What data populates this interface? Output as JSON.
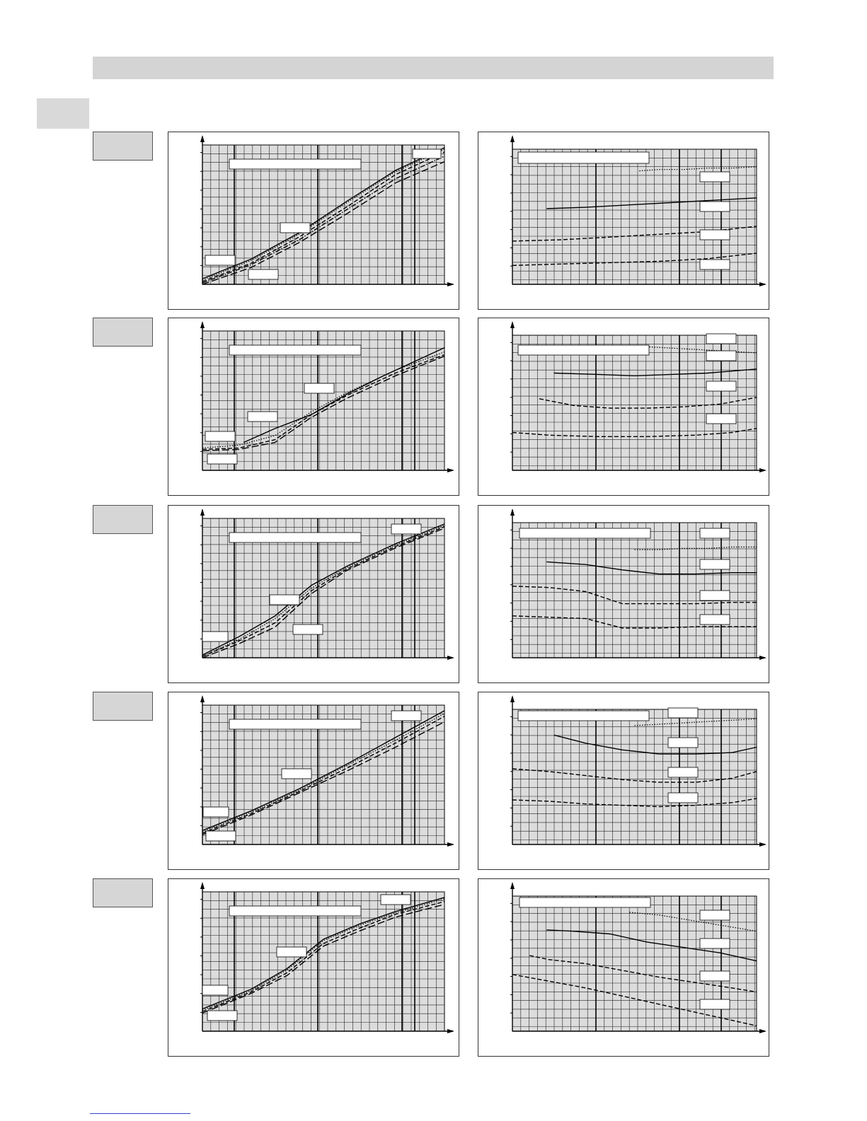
{
  "page": {
    "background": "#ffffff",
    "header_bar_color": "#d4d4d4",
    "tab_color": "#d9d9d9"
  },
  "chart_style": {
    "plot_bg": "#dcdcdc",
    "grid_minor": "#222222",
    "grid_major": "#000000"
  },
  "rows": [
    {
      "left": {
        "chart_data": {
          "type": "line",
          "grid": true,
          "xlim": [
            0,
            100
          ],
          "ylim": [
            0,
            100
          ],
          "series": [
            {
              "style": "solid",
              "x": [
                0,
                20,
                40,
                60,
                80,
                100
              ],
              "y": [
                4,
                18,
                37,
                60,
                82,
                98
              ]
            },
            {
              "style": "dotted",
              "x": [
                0,
                20,
                40,
                60,
                80,
                100
              ],
              "y": [
                3,
                17,
                36,
                59,
                81,
                97
              ]
            },
            {
              "style": "dashed",
              "x": [
                0,
                20,
                40,
                60,
                80,
                100
              ],
              "y": [
                2,
                15,
                34,
                56,
                79,
                95
              ]
            },
            {
              "style": "dashdot",
              "x": [
                0,
                20,
                40,
                60,
                80,
                100
              ],
              "y": [
                1,
                14,
                32,
                54,
                76,
                92
              ]
            },
            {
              "style": "longdash",
              "x": [
                0,
                20,
                40,
                60,
                80,
                100
              ],
              "y": [
                0,
                12,
                30,
                51,
                73,
                88
              ]
            }
          ]
        }
      },
      "right": {
        "chart_data": {
          "type": "line",
          "grid": true,
          "xlim": [
            0,
            100
          ],
          "ylim": [
            0,
            100
          ],
          "series": [
            {
              "style": "dotted",
              "x": [
                52,
                60,
                70,
                80,
                90,
                100
              ],
              "y": [
                84,
                85,
                85,
                86,
                86,
                87
              ]
            },
            {
              "style": "solid",
              "x": [
                14,
                30,
                50,
                70,
                100
              ],
              "y": [
                56,
                57,
                59,
                61,
                64
              ]
            },
            {
              "style": "dashed",
              "x": [
                0,
                20,
                40,
                60,
                80,
                100
              ],
              "y": [
                32,
                33,
                35,
                37,
                39,
                43
              ]
            },
            {
              "style": "dashed",
              "x": [
                0,
                20,
                40,
                60,
                80,
                100
              ],
              "y": [
                14,
                15,
                16,
                17,
                19,
                23
              ]
            }
          ]
        }
      }
    },
    {
      "left": {
        "chart_data": {
          "type": "line",
          "grid": true,
          "xlim": [
            0,
            100
          ],
          "ylim": [
            0,
            100
          ],
          "series": [
            {
              "style": "solid",
              "x": [
                17,
                30,
                45,
                60,
                75,
                90,
                100
              ],
              "y": [
                20,
                30,
                40,
                55,
                68,
                80,
                88
              ]
            },
            {
              "style": "dotted",
              "x": [
                0,
                15,
                30,
                45,
                60,
                80,
                100
              ],
              "y": [
                16,
                18,
                25,
                42,
                56,
                72,
                85
              ]
            },
            {
              "style": "dashed",
              "x": [
                0,
                15,
                30,
                45,
                60,
                80,
                100
              ],
              "y": [
                15,
                16,
                22,
                40,
                54,
                70,
                83
              ]
            },
            {
              "style": "longdash",
              "x": [
                0,
                15,
                30,
                45,
                60,
                80,
                100
              ],
              "y": [
                14,
                15,
                20,
                38,
                52,
                68,
                82
              ]
            }
          ]
        }
      },
      "right": {
        "chart_data": {
          "type": "line",
          "grid": true,
          "xlim": [
            0,
            100
          ],
          "ylim": [
            0,
            100
          ],
          "series": [
            {
              "style": "dotted",
              "x": [
                50,
                60,
                70,
                80,
                90,
                100
              ],
              "y": [
                92,
                91,
                90,
                89,
                88,
                87
              ]
            },
            {
              "style": "solid",
              "x": [
                17,
                35,
                50,
                65,
                80,
                100
              ],
              "y": [
                72,
                71,
                70,
                71,
                72,
                75
              ]
            },
            {
              "style": "dashed",
              "x": [
                11,
                25,
                40,
                55,
                70,
                85,
                100
              ],
              "y": [
                53,
                48,
                46,
                46,
                47,
                49,
                54
              ]
            },
            {
              "style": "dashed",
              "x": [
                0,
                15,
                35,
                55,
                75,
                90,
                100
              ],
              "y": [
                28,
                26,
                25,
                25,
                26,
                28,
                31
              ]
            }
          ]
        }
      }
    },
    {
      "left": {
        "chart_data": {
          "type": "line",
          "grid": true,
          "xlim": [
            0,
            100
          ],
          "ylim": [
            0,
            100
          ],
          "series": [
            {
              "style": "solid",
              "x": [
                0,
                15,
                30,
                45,
                60,
                80,
                100
              ],
              "y": [
                2,
                15,
                30,
                52,
                66,
                82,
                96
              ]
            },
            {
              "style": "dotted",
              "x": [
                0,
                15,
                30,
                45,
                60,
                80,
                100
              ],
              "y": [
                1,
                13,
                28,
                50,
                65,
                81,
                95
              ]
            },
            {
              "style": "dashed",
              "x": [
                0,
                15,
                30,
                45,
                60,
                80,
                100
              ],
              "y": [
                1,
                12,
                25,
                48,
                64,
                80,
                94
              ]
            },
            {
              "style": "longdash",
              "x": [
                0,
                15,
                30,
                45,
                60,
                80,
                100
              ],
              "y": [
                0,
                10,
                22,
                46,
                63,
                79,
                93
              ]
            }
          ]
        }
      },
      "right": {
        "chart_data": {
          "type": "line",
          "grid": true,
          "xlim": [
            0,
            100
          ],
          "ylim": [
            0,
            100
          ],
          "series": [
            {
              "style": "dotted",
              "x": [
                50,
                60,
                70,
                80,
                90,
                100
              ],
              "y": [
                80,
                80,
                81,
                81,
                82,
                82
              ]
            },
            {
              "style": "solid",
              "x": [
                14,
                30,
                45,
                60,
                75,
                90,
                100
              ],
              "y": [
                71,
                69,
                65,
                62,
                62,
                63,
                63
              ]
            },
            {
              "style": "dashed",
              "x": [
                0,
                15,
                30,
                45,
                60,
                75,
                90,
                100
              ],
              "y": [
                53,
                52,
                49,
                40,
                40,
                40,
                41,
                41
              ]
            },
            {
              "style": "dashed",
              "x": [
                0,
                15,
                30,
                45,
                60,
                75,
                90,
                100
              ],
              "y": [
                31,
                30,
                29,
                22,
                22,
                23,
                23,
                23
              ]
            }
          ]
        }
      }
    },
    {
      "left": {
        "chart_data": {
          "type": "line",
          "grid": true,
          "xlim": [
            0,
            100
          ],
          "ylim": [
            0,
            100
          ],
          "series": [
            {
              "style": "solid",
              "x": [
                0,
                20,
                40,
                60,
                80,
                100
              ],
              "y": [
                10,
                24,
                40,
                58,
                77,
                96
              ]
            },
            {
              "style": "dotted",
              "x": [
                0,
                20,
                40,
                60,
                80,
                100
              ],
              "y": [
                9,
                23,
                39,
                57,
                75,
                94
              ]
            },
            {
              "style": "dashed",
              "x": [
                0,
                20,
                40,
                60,
                80,
                100
              ],
              "y": [
                8,
                22,
                38,
                55,
                73,
                92
              ]
            },
            {
              "style": "longdash",
              "x": [
                0,
                20,
                40,
                60,
                80,
                100
              ],
              "y": [
                7,
                21,
                37,
                53,
                70,
                88
              ]
            }
          ]
        }
      },
      "right": {
        "chart_data": {
          "type": "line",
          "grid": true,
          "xlim": [
            0,
            100
          ],
          "ylim": [
            0,
            100
          ],
          "series": [
            {
              "style": "dotted",
              "x": [
                50,
                60,
                70,
                80,
                90,
                100
              ],
              "y": [
                88,
                89,
                90,
                91,
                92,
                93
              ]
            },
            {
              "style": "solid",
              "x": [
                17,
                30,
                45,
                60,
                75,
                90,
                100
              ],
              "y": [
                81,
                75,
                70,
                67,
                67,
                68,
                72
              ]
            },
            {
              "style": "dashed",
              "x": [
                0,
                15,
                30,
                45,
                60,
                75,
                90,
                100
              ],
              "y": [
                56,
                54,
                51,
                48,
                46,
                46,
                49,
                54
              ]
            },
            {
              "style": "dashed",
              "x": [
                0,
                15,
                30,
                45,
                60,
                75,
                90,
                100
              ],
              "y": [
                33,
                32,
                30,
                29,
                28,
                29,
                31,
                34
              ]
            }
          ]
        }
      }
    },
    {
      "left": {
        "chart_data": {
          "type": "line",
          "grid": true,
          "xlim": [
            0,
            100
          ],
          "ylim": [
            0,
            100
          ],
          "series": [
            {
              "style": "solid",
              "x": [
                0,
                20,
                35,
                50,
                65,
                80,
                100
              ],
              "y": [
                16,
                30,
                45,
                66,
                77,
                86,
                96
              ]
            },
            {
              "style": "dotted",
              "x": [
                0,
                20,
                35,
                50,
                65,
                80,
                100
              ],
              "y": [
                15,
                29,
                44,
                65,
                76,
                85,
                95
              ]
            },
            {
              "style": "dashed",
              "x": [
                0,
                20,
                35,
                50,
                65,
                80,
                100
              ],
              "y": [
                14,
                28,
                42,
                63,
                74,
                84,
                93
              ]
            },
            {
              "style": "longdash",
              "x": [
                0,
                20,
                35,
                50,
                65,
                80,
                100
              ],
              "y": [
                13,
                27,
                40,
                61,
                72,
                82,
                91
              ]
            }
          ]
        }
      },
      "right": {
        "chart_data": {
          "type": "line",
          "grid": true,
          "xlim": [
            0,
            100
          ],
          "ylim": [
            0,
            100
          ],
          "series": [
            {
              "style": "dotted",
              "x": [
                48,
                60,
                70,
                80,
                90,
                100
              ],
              "y": [
                88,
                86,
                83,
                80,
                77,
                74
              ]
            },
            {
              "style": "solid",
              "x": [
                14,
                25,
                40,
                55,
                70,
                85,
                100
              ],
              "y": [
                75,
                74,
                72,
                66,
                62,
                58,
                52
              ]
            },
            {
              "style": "dashed",
              "x": [
                7,
                15,
                30,
                45,
                60,
                75,
                90,
                100
              ],
              "y": [
                56,
                53,
                50,
                45,
                40,
                36,
                32,
                29
              ]
            },
            {
              "style": "dashed",
              "x": [
                0,
                15,
                30,
                45,
                60,
                75,
                90,
                100
              ],
              "y": [
                42,
                37,
                32,
                26,
                20,
                14,
                8,
                4
              ]
            }
          ]
        }
      }
    }
  ]
}
